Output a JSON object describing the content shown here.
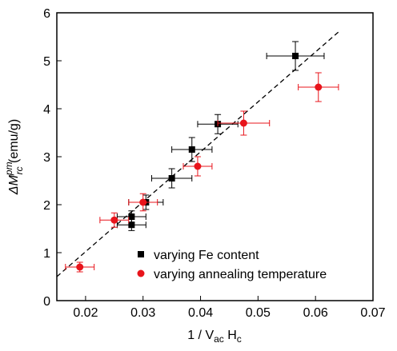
{
  "chart_data": {
    "type": "scatter",
    "xlabel": {
      "main": "1 / V",
      "sub1": "ac",
      "mid": " H",
      "sub2": "c"
    },
    "ylabel": {
      "main": "ΔM",
      "sup": "pm",
      "sub": "rc",
      "unit": " (emu/g)"
    },
    "xlim": [
      0.015,
      0.07
    ],
    "xticks": [
      0.02,
      0.03,
      0.04,
      0.05,
      0.06,
      0.07
    ],
    "ylim": [
      0,
      6
    ],
    "yticks": [
      0,
      1,
      2,
      3,
      4,
      5,
      6
    ],
    "legend": "lower right",
    "series": [
      {
        "name": "varying Fe content",
        "color": "#000000",
        "marker": "square",
        "x": [
          0.0565,
          0.043,
          0.0385,
          0.035,
          0.0305,
          0.028,
          0.028
        ],
        "y": [
          5.1,
          3.68,
          3.15,
          2.55,
          2.05,
          1.75,
          1.58
        ],
        "xerr": [
          0.005,
          0.0035,
          0.0035,
          0.0035,
          0.003,
          0.0025,
          0.0025
        ],
        "yerr": [
          0.3,
          0.2,
          0.25,
          0.2,
          0.15,
          0.12,
          0.12
        ]
      },
      {
        "name": "varying annealing temperature",
        "color": "#e8141b",
        "marker": "circle",
        "x": [
          0.0605,
          0.0475,
          0.0395,
          0.03,
          0.025,
          0.019
        ],
        "y": [
          4.45,
          3.7,
          2.8,
          2.05,
          1.68,
          0.7
        ],
        "xerr": [
          0.0035,
          0.0045,
          0.0025,
          0.0025,
          0.0025,
          0.0025
        ],
        "yerr": [
          0.3,
          0.25,
          0.2,
          0.18,
          0.15,
          0.1
        ]
      }
    ],
    "fit": {
      "color": "#000000",
      "x": [
        0.015,
        0.064
      ],
      "y": [
        0.5,
        5.6
      ]
    }
  }
}
